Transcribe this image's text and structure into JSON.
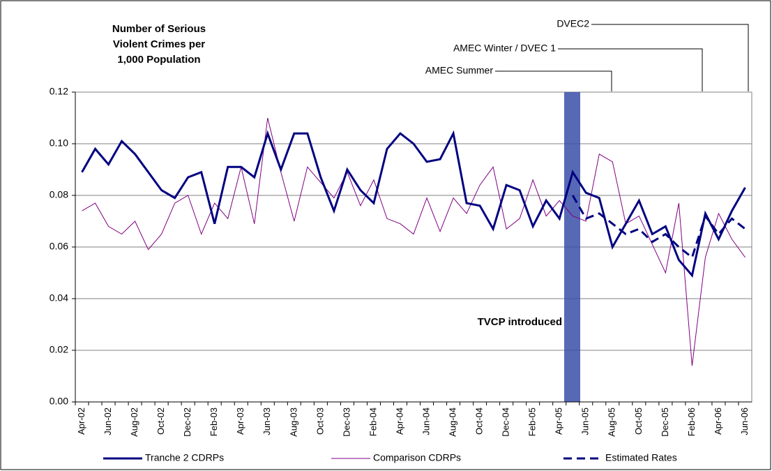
{
  "chart_data": {
    "type": "line",
    "title": [
      "Number of Serious",
      "Violent Crimes per",
      "1,000 Population"
    ],
    "categories": [
      "Apr-02",
      null,
      "Jun-02",
      null,
      "Aug-02",
      null,
      "Oct-02",
      null,
      "Dec-02",
      null,
      "Feb-03",
      null,
      "Apr-03",
      null,
      "Jun-03",
      null,
      "Aug-03",
      null,
      "Oct-03",
      null,
      "Dec-03",
      null,
      "Feb-04",
      null,
      "Apr-04",
      null,
      "Jun-04",
      null,
      "Aug-04",
      null,
      "Oct-04",
      null,
      "Dec-04",
      null,
      "Feb-05",
      null,
      "Apr-05",
      null,
      "Jun-05",
      null,
      "Aug-05",
      null,
      "Oct-05",
      null,
      "Dec-05",
      null,
      "Feb-06",
      null,
      "Apr-06",
      null,
      "Jun-06"
    ],
    "series": [
      {
        "name": "Tranche 2 CDRPs",
        "color": "#000080",
        "width": 3,
        "dashed": false,
        "values": [
          0.089,
          0.098,
          0.092,
          0.101,
          0.096,
          0.089,
          0.082,
          0.079,
          0.087,
          0.089,
          0.069,
          0.091,
          0.091,
          0.087,
          0.104,
          0.09,
          0.104,
          0.104,
          0.087,
          0.074,
          0.09,
          0.082,
          0.077,
          0.098,
          0.104,
          0.1,
          0.093,
          0.094,
          0.104,
          0.077,
          0.076,
          0.067,
          0.084,
          0.082,
          0.068,
          0.078,
          0.071,
          0.089,
          0.081,
          0.079,
          0.06,
          0.069,
          0.078,
          0.065,
          0.068,
          0.055,
          0.049,
          0.073,
          0.063,
          0.074,
          0.083
        ]
      },
      {
        "name": "Comparison CDRPs",
        "color": "#800080",
        "width": 1,
        "dashed": false,
        "values": [
          0.074,
          0.077,
          0.068,
          0.065,
          0.07,
          0.059,
          0.065,
          0.077,
          0.08,
          0.065,
          0.077,
          0.071,
          0.091,
          0.069,
          0.11,
          0.089,
          0.07,
          0.091,
          0.085,
          0.079,
          0.089,
          0.076,
          0.086,
          0.071,
          0.069,
          0.065,
          0.079,
          0.066,
          0.079,
          0.073,
          0.084,
          0.091,
          0.067,
          0.071,
          0.086,
          0.072,
          0.078,
          0.072,
          0.07,
          0.096,
          0.093,
          0.069,
          0.072,
          0.061,
          0.05,
          0.077,
          0.014,
          0.056,
          0.073,
          0.063,
          0.056
        ]
      },
      {
        "name": "Estimated Rates",
        "color": "#000080",
        "width": 3,
        "dashed": true,
        "values": [
          null,
          null,
          null,
          null,
          null,
          null,
          null,
          null,
          null,
          null,
          null,
          null,
          null,
          null,
          null,
          null,
          null,
          null,
          null,
          null,
          null,
          null,
          null,
          null,
          null,
          null,
          null,
          null,
          null,
          null,
          null,
          null,
          null,
          null,
          null,
          null,
          null,
          0.08,
          0.071,
          0.073,
          0.069,
          0.065,
          0.067,
          0.062,
          0.065,
          0.06,
          0.056,
          0.072,
          0.065,
          0.071,
          0.067
        ]
      }
    ],
    "ylim": [
      0,
      0.12
    ],
    "yticks": [
      {
        "value": 0,
        "label": "0.00"
      },
      {
        "value": 0.02,
        "label": "0.02"
      },
      {
        "value": 0.04,
        "label": "0.04"
      },
      {
        "value": 0.06,
        "label": "0.06"
      },
      {
        "value": 0.08,
        "label": "0.08"
      },
      {
        "value": 0.1,
        "label": "0.10"
      },
      {
        "value": 0.12,
        "label": "0.12"
      }
    ],
    "grid": true,
    "legend": "bottom",
    "annotations": [
      "TVCP introduced",
      "AMEC Summer",
      "AMEC Winter / DVEC 1",
      "DVEC2"
    ]
  }
}
